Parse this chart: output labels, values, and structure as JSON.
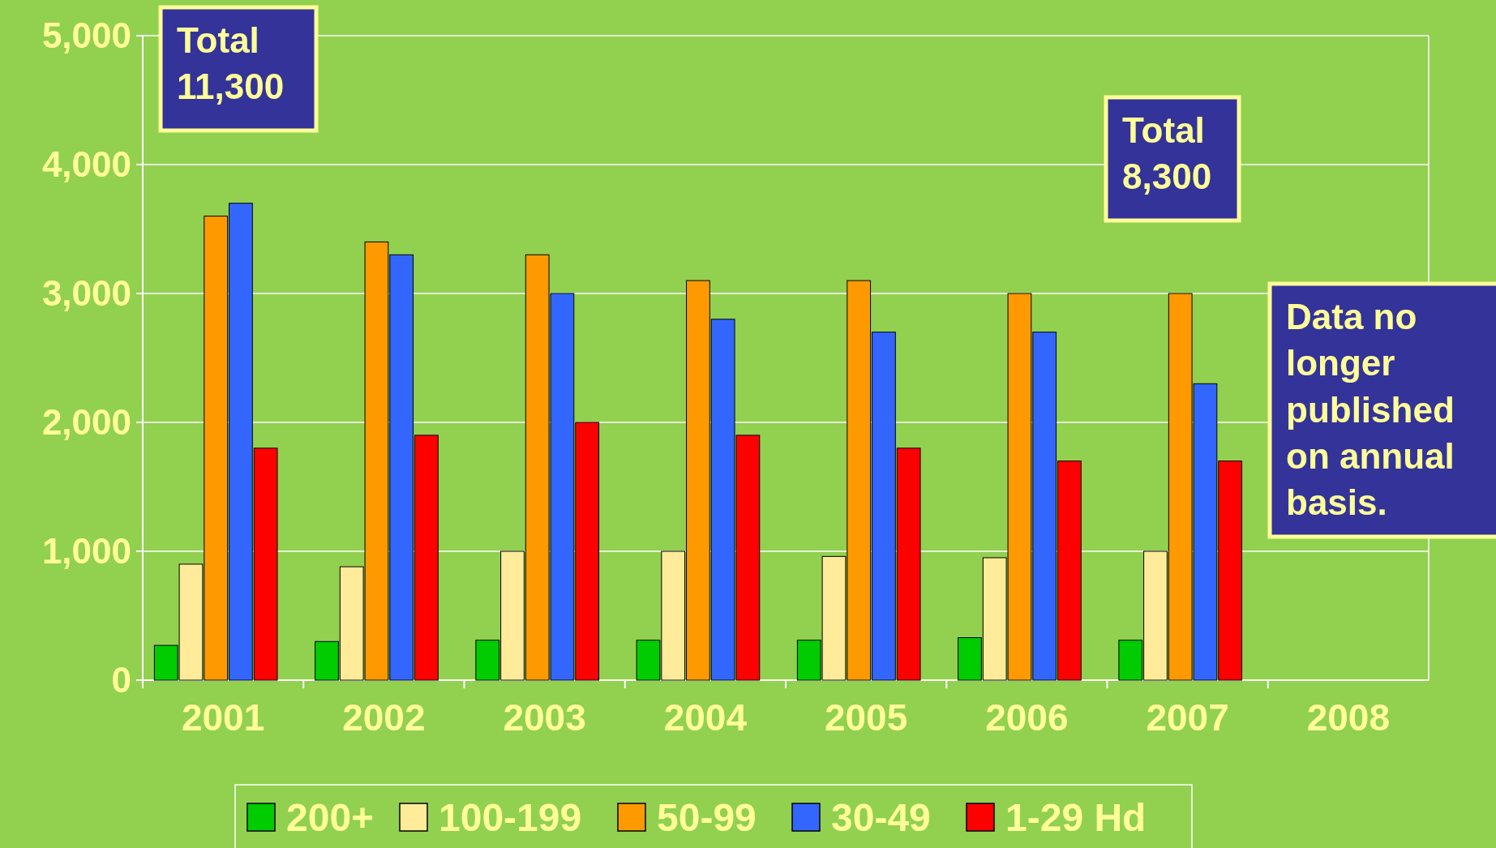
{
  "chart_data": {
    "type": "bar",
    "categories": [
      "2001",
      "2002",
      "2003",
      "2004",
      "2005",
      "2006",
      "2007",
      "2008"
    ],
    "series": [
      {
        "name": "200+",
        "color": "#00cc00",
        "values": [
          270,
          300,
          310,
          310,
          310,
          330,
          310,
          null
        ]
      },
      {
        "name": "100-199",
        "color": "#ffeb99",
        "values": [
          900,
          880,
          1000,
          1000,
          960,
          950,
          1000,
          null
        ]
      },
      {
        "name": "50-99",
        "color": "#ff9900",
        "values": [
          3600,
          3400,
          3300,
          3100,
          3100,
          3000,
          3000,
          null
        ]
      },
      {
        "name": "30-49",
        "color": "#3366ff",
        "values": [
          3700,
          3300,
          3000,
          2800,
          2700,
          2700,
          2300,
          null
        ]
      },
      {
        "name": "1-29 Hd",
        "color": "#ff0000",
        "values": [
          1800,
          1900,
          2000,
          1900,
          1800,
          1700,
          1700,
          null
        ]
      }
    ],
    "ylim": [
      0,
      5000
    ],
    "yticks": [
      {
        "value": 0,
        "label": "0"
      },
      {
        "value": 1000,
        "label": "1,000"
      },
      {
        "value": 2000,
        "label": "2,000"
      },
      {
        "value": 3000,
        "label": "3,000"
      },
      {
        "value": 4000,
        "label": "4,000"
      },
      {
        "value": 5000,
        "label": "5,000"
      }
    ],
    "grid": "y",
    "legend": "bottom",
    "annotations": [
      "Total 11,300",
      "Total 8,300",
      "Data no longer published on annual basis."
    ]
  }
}
